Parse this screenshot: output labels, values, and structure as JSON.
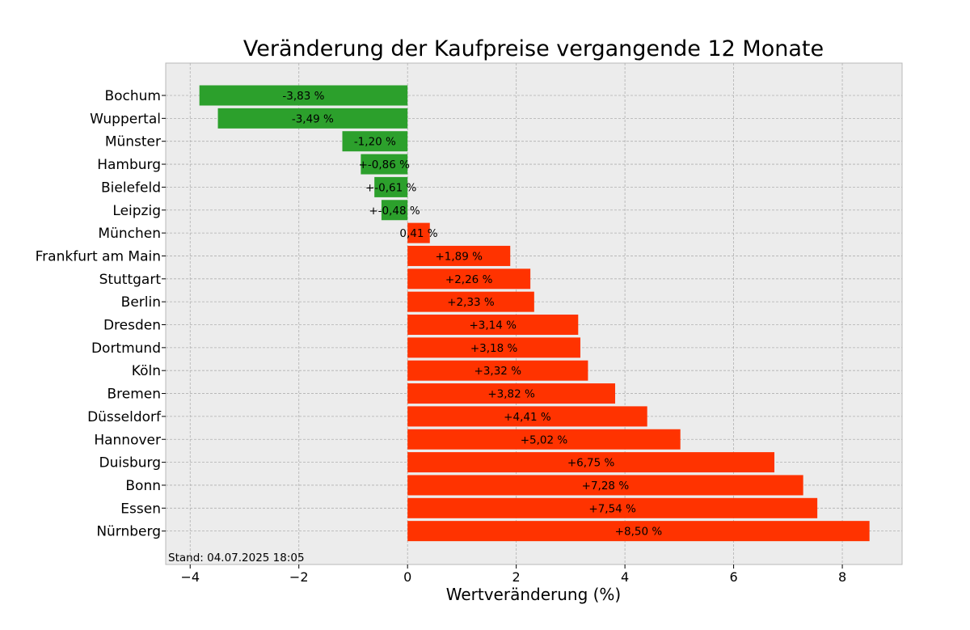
{
  "chart_data": {
    "type": "bar",
    "orientation": "horizontal",
    "title": "Veränderung der Kaufpreise vergangende 12 Monate",
    "xlabel": "Wertveränderung (%)",
    "ylabel": "",
    "xlim": [
      -4.45,
      9.1
    ],
    "xticks": [
      -4,
      -2,
      0,
      2,
      4,
      6,
      8
    ],
    "xtick_labels": [
      "−4",
      "−2",
      "0",
      "2",
      "4",
      "6",
      "8"
    ],
    "grid": true,
    "footnote": "Stand: 04.07.2025 18:05",
    "colors": {
      "negative": "#2ca02c",
      "positive": "#ff3300",
      "background": "#ececec"
    },
    "categories": [
      "Bochum",
      "Wuppertal",
      "Münster",
      "Hamburg",
      "Bielefeld",
      "Leipzig",
      "München",
      "Frankfurt am Main",
      "Stuttgart",
      "Berlin",
      "Dresden",
      "Dortmund",
      "Köln",
      "Bremen",
      "Düsseldorf",
      "Hannover",
      "Duisburg",
      "Bonn",
      "Essen",
      "Nürnberg"
    ],
    "values": [
      -3.83,
      -3.49,
      -1.2,
      -0.86,
      -0.61,
      -0.48,
      0.41,
      1.89,
      2.26,
      2.33,
      3.14,
      3.18,
      3.32,
      3.82,
      4.41,
      5.02,
      6.75,
      7.28,
      7.54,
      8.5
    ],
    "data_labels": [
      "-3,83 %",
      "-3,49 %",
      "-1,20 %",
      "+-0,86 %",
      "+-0,61 %",
      "+-0,48 %",
      "0,41 %",
      "+1,89 %",
      "+2,26 %",
      "+2,33 %",
      "+3,14 %",
      "+3,18 %",
      "+3,32 %",
      "+3,82 %",
      "+4,41 %",
      "+5,02 %",
      "+6,75 %",
      "+7,28 %",
      "+7,54 %",
      "+8,50 %"
    ]
  }
}
